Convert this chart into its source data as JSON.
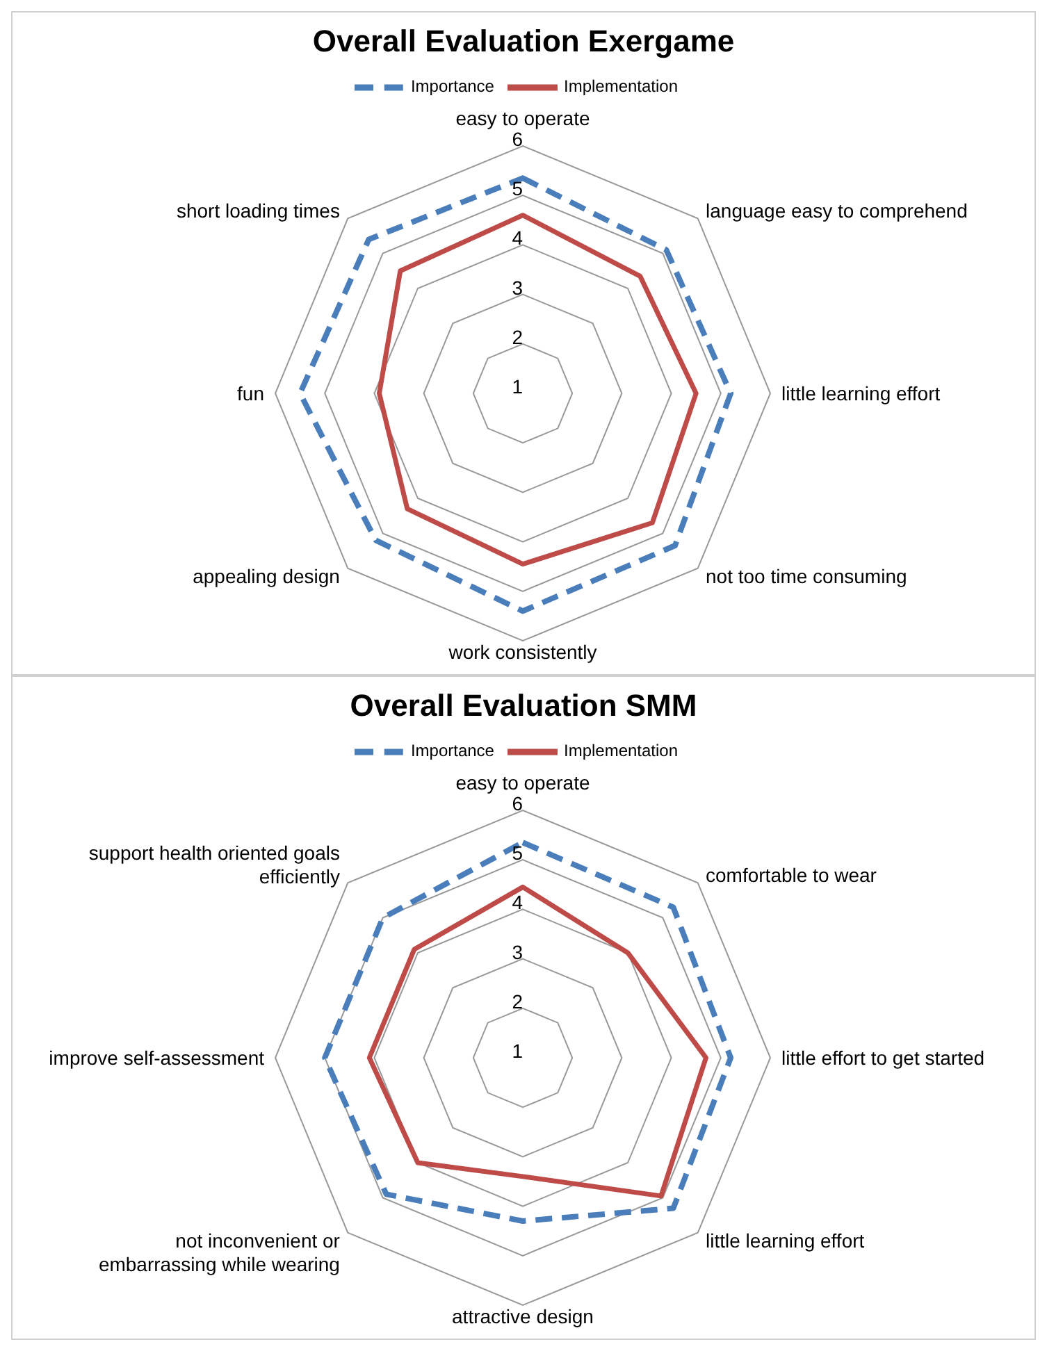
{
  "chart_data": [
    {
      "type": "radar",
      "title": "Overall Evaluation Exergame",
      "categories": [
        "easy to operate",
        "language easy to comprehend",
        "little learning effort",
        "not too time consuming",
        "work consistently",
        "appealing design",
        "fun",
        "short loading times"
      ],
      "series": [
        {
          "name": "Importance",
          "color": "#4a7ebb",
          "line_style": "dashed",
          "values": [
            5.35,
            5.1,
            5.2,
            5.35,
            5.4,
            5.2,
            5.5,
            5.4
          ]
        },
        {
          "name": "Implementation",
          "color": "#be4b48",
          "line_style": "solid",
          "values": [
            4.6,
            4.35,
            4.5,
            4.7,
            4.45,
            4.3,
            3.9,
            4.5
          ]
        }
      ],
      "ylim": [
        1,
        6
      ],
      "yticks": [
        1,
        2,
        3,
        4,
        5,
        6
      ],
      "grid": true,
      "legend": "top",
      "marker": "none"
    },
    {
      "type": "radar",
      "title": "Overall Evaluation SMM",
      "categories": [
        "easy to operate",
        "comfortable to wear",
        "little effort to get started",
        "little learning effort",
        "attractive design",
        "not inconvenient or embarrassing while wearing",
        "improve self-assessment",
        "support health oriented goals efficiently"
      ],
      "series": [
        {
          "name": "Importance",
          "color": "#4a7ebb",
          "line_style": "dashed",
          "values": [
            5.35,
            5.3,
            5.2,
            5.3,
            4.3,
            4.9,
            5.0,
            5.0
          ]
        },
        {
          "name": "Implementation",
          "color": "#be4b48",
          "line_style": "solid",
          "values": [
            4.45,
            4.0,
            4.7,
            4.95,
            3.4,
            4.0,
            4.1,
            4.1
          ]
        }
      ],
      "ylim": [
        1,
        6
      ],
      "yticks": [
        1,
        2,
        3,
        4,
        5,
        6
      ],
      "grid": true,
      "legend": "top",
      "marker": "none"
    }
  ]
}
